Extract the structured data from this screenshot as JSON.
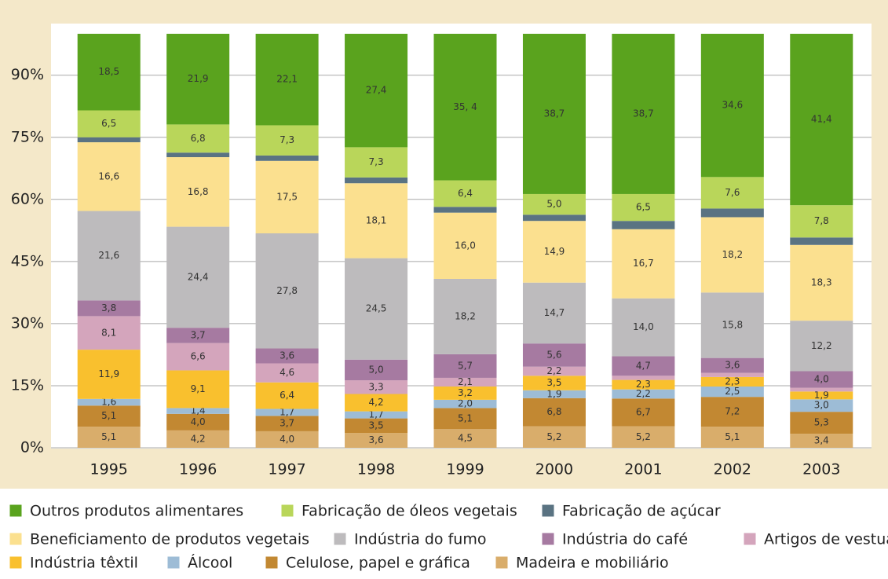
{
  "chart_data": {
    "type": "stacked_bar",
    "categories": [
      "1995",
      "1996",
      "1997",
      "1998",
      "1999",
      "2000",
      "2001",
      "2002",
      "2003"
    ],
    "ylim": [
      0,
      100
    ],
    "yticks": [
      {
        "value": 0,
        "label": "0%"
      },
      {
        "value": 15,
        "label": "15%"
      },
      {
        "value": 30,
        "label": "30%"
      },
      {
        "value": 45,
        "label": "45%"
      },
      {
        "value": 60,
        "label": "60%"
      },
      {
        "value": 75,
        "label": "75%"
      },
      {
        "value": 90,
        "label": "90%"
      }
    ],
    "grid": true,
    "series": [
      {
        "name": "Madeira e mobiliário",
        "color": "#d9ad6b",
        "values": [
          5.1,
          4.2,
          4.0,
          3.6,
          4.5,
          5.2,
          5.2,
          5.1,
          3.4
        ],
        "value_labels": [
          "5,1",
          "4,2",
          "4,0",
          "3,6",
          "4,5",
          "5,2",
          "5,2",
          "5,1",
          "3,4"
        ]
      },
      {
        "name": "Celulose, papel e gráfica",
        "color": "#c28832",
        "values": [
          5.1,
          4.0,
          3.7,
          3.5,
          5.1,
          6.8,
          6.7,
          7.2,
          5.3
        ],
        "value_labels": [
          "5,1",
          "4,0",
          "3,7",
          "3,5",
          "5,1",
          "6,8",
          "6,7",
          "7,2",
          "5,3"
        ]
      },
      {
        "name": "Álcool",
        "color": "#9dbcd6",
        "values": [
          1.6,
          1.4,
          1.7,
          1.7,
          2.0,
          1.9,
          2.2,
          2.5,
          3.0
        ],
        "value_labels": [
          "1,6",
          "1,4",
          "1,7",
          "1,7",
          "2,0",
          "1,9",
          "2,2",
          "2,5",
          "3,0"
        ]
      },
      {
        "name": "Indústria têxtil",
        "color": "#f9c02e",
        "values": [
          11.9,
          9.1,
          6.4,
          4.2,
          3.2,
          3.5,
          2.3,
          2.3,
          1.9
        ],
        "value_labels": [
          "11,9",
          "9,1",
          "6,4",
          "4,2",
          "3,2",
          "3,5",
          "2,3",
          "2,3",
          "1,9"
        ]
      },
      {
        "name": "Artigos de vestuário",
        "color": "#d4a5bc",
        "values": [
          8.1,
          6.6,
          4.6,
          3.3,
          2.1,
          2.2,
          1.0,
          1.0,
          0.9
        ],
        "value_labels": [
          "8,1",
          "6,6",
          "4,6",
          "3,3",
          "2,1",
          "2,2",
          null,
          null,
          null
        ]
      },
      {
        "name": "Indústria do café",
        "color": "#a67aa1",
        "values": [
          3.8,
          3.7,
          3.6,
          5.0,
          5.7,
          5.6,
          4.7,
          3.6,
          4.0
        ],
        "value_labels": [
          "3,8",
          "3,7",
          "3,6",
          "5,0",
          "5,7",
          "5,6",
          "4,7",
          "3,6",
          "4,0"
        ]
      },
      {
        "name": "Indústria do fumo",
        "color": "#bdbbbd",
        "values": [
          21.6,
          24.4,
          27.8,
          24.5,
          18.2,
          14.7,
          14.0,
          15.8,
          12.2
        ],
        "value_labels": [
          "21,6",
          "24,4",
          "27,8",
          "24,5",
          "18,2",
          "14,7",
          "14,0",
          "15,8",
          "12,2"
        ]
      },
      {
        "name": "Beneficiamento de produtos vegetais",
        "color": "#fbe08f",
        "values": [
          16.6,
          16.8,
          17.5,
          18.1,
          16.0,
          14.9,
          16.7,
          18.2,
          18.3
        ],
        "value_labels": [
          "16,6",
          "16,8",
          "17,5",
          "18,1",
          "16,0",
          "14,9",
          "16,7",
          "18,2",
          "18,3"
        ]
      },
      {
        "name": "Fabricação de açúcar",
        "color": "#5a7382",
        "values": [
          1.2,
          1.1,
          1.3,
          1.4,
          1.4,
          1.5,
          2.0,
          2.1,
          1.8
        ]
      },
      {
        "name": "Fabricação de óleos vegetais",
        "color": "#b9d65a",
        "values": [
          6.5,
          6.8,
          7.3,
          7.3,
          6.4,
          5.0,
          6.5,
          7.6,
          7.8
        ],
        "value_labels": [
          "6,5",
          "6,8",
          "7,3",
          "7,3",
          "6,4",
          "5,0",
          "6,5",
          "7,6",
          "7,8"
        ]
      },
      {
        "name": "Outros produtos alimentares",
        "color": "#5aa31e",
        "values": [
          18.5,
          21.9,
          22.1,
          27.4,
          35.4,
          38.7,
          38.7,
          34.6,
          41.4
        ],
        "value_labels": [
          "18,5",
          "21,9",
          "22,1",
          "27,4",
          "35, 4",
          "38,7",
          "38,7",
          "34,6",
          "41,4"
        ]
      }
    ]
  }
}
